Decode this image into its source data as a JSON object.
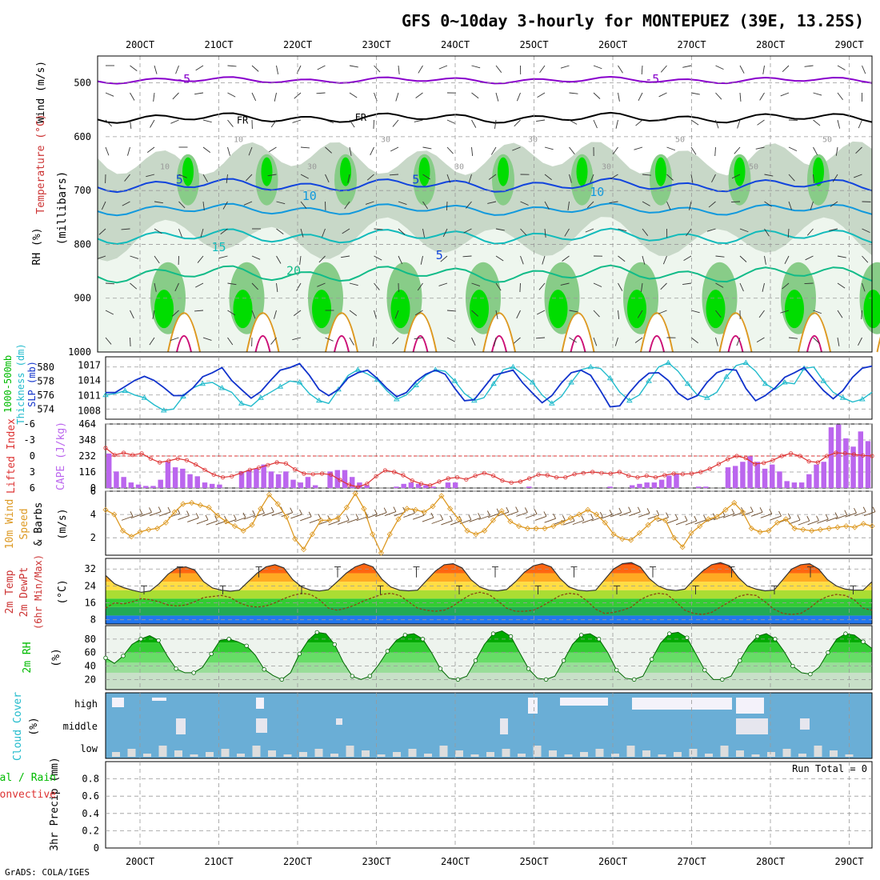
{
  "title": "GFS 0~10day 3-hourly for MONTEPUEZ (39E, 13.25S)",
  "footer": "GrADS: COLA/IGES",
  "run_total": "Run Total = 0",
  "days": [
    "20OCT",
    "21OCT",
    "22OCT",
    "23OCT",
    "24OCT",
    "25OCT",
    "26OCT",
    "27OCT",
    "28OCT",
    "29OCT"
  ],
  "colors": {
    "rh_dark": "#00dd00",
    "rh_mid": "#88cc88",
    "rh_light": "#c8d8c8",
    "rh_pale": "#eef6ee",
    "temp_neg5": "#8800cc",
    "temp_0": "#000000",
    "temp_5": "#1144dd",
    "temp_10": "#1199dd",
    "temp_15": "#11bbbb",
    "temp_20": "#11bb88",
    "temp_25": "#dd9922",
    "temp_30": "#cc1177",
    "slp": "#1133cc",
    "thickness": "#22bbcc",
    "cape": "#bb66ee",
    "lifted": "#dd3333",
    "wind10m": "#dd9922",
    "barb": "#6b4a2a",
    "rh2m": "#00bb00",
    "cloud_bg": "#6aaed6",
    "cloud_fill": "#dddddd"
  },
  "chart_data": [
    {
      "type": "heatmap",
      "name": "upper-air",
      "ylabel_parts": [
        "Wind (m/s)",
        "Temperature (°C)",
        "RH (%)",
        "(millibars)"
      ],
      "yticks": [
        500,
        600,
        700,
        800,
        900,
        1000
      ],
      "ylim": [
        1000,
        450
      ],
      "isotherm_labels": [
        {
          "label": "-5",
          "level": 493,
          "x_day": 0.55
        },
        {
          "label": "-5",
          "level": 493,
          "x_day": 6.5
        },
        {
          "label": "FR",
          "level": 568,
          "x_day": 1.3
        },
        {
          "label": "FR",
          "level": 563,
          "x_day": 2.8
        },
        {
          "label": "5",
          "level": 680,
          "x_day": 0.5
        },
        {
          "label": "5",
          "level": 680,
          "x_day": 3.5
        },
        {
          "label": "5",
          "level": 820,
          "x_day": 3.8
        },
        {
          "label": "10",
          "level": 710,
          "x_day": 2.15
        },
        {
          "label": "10",
          "level": 703,
          "x_day": 5.8
        },
        {
          "label": "15",
          "level": 805,
          "x_day": 1.0
        },
        {
          "label": "20",
          "level": 849,
          "x_day": 1.95
        }
      ],
      "rh_labels": [
        "10",
        "10",
        "30",
        "30",
        "30",
        "30",
        "30",
        "50",
        "50",
        "50"
      ]
    },
    {
      "type": "line",
      "name": "slp-thickness",
      "ylabel_left": [
        "1000-500mb",
        "Thickness (dm)"
      ],
      "ylabel_right": "SLP (mb)",
      "thickness_ticks": [
        574,
        576,
        578,
        580
      ],
      "slp_ticks": [
        1008,
        1011,
        1014,
        1017
      ],
      "series": [
        {
          "name": "SLP (mb)",
          "values": [
            1011.6,
            1011.6,
            1012.8,
            1014.0,
            1014.8,
            1014.0,
            1012.6,
            1011.0,
            1011.0,
            1012.5,
            1014.7,
            1015.5,
            1016.5,
            1014.0,
            1012.2,
            1010.5,
            1011.8,
            1014.0,
            1016.0,
            1016.5,
            1017.3,
            1015.0,
            1012.2,
            1011.0,
            1012.2,
            1014.5,
            1015.5,
            1016.0,
            1014.4,
            1012.4,
            1010.8,
            1011.6,
            1013.8,
            1015.2,
            1016.0,
            1015.2,
            1012.4,
            1010.0,
            1010.2,
            1012.6,
            1015.0,
            1015.5,
            1016.0,
            1013.5,
            1011.5,
            1009.6,
            1011.0,
            1013.5,
            1015.5,
            1016.0,
            1015.0,
            1012.0,
            1008.8,
            1009.0,
            1011.6,
            1013.8,
            1015.4,
            1015.5,
            1014.0,
            1011.5,
            1010.2,
            1011.0,
            1013.6,
            1015.5,
            1016.2,
            1016.0,
            1012.4,
            1010.0,
            1011.0,
            1012.5,
            1014.6,
            1015.5,
            1016.5,
            1014.2,
            1012.0,
            1010.4,
            1012.0,
            1014.6,
            1016.4,
            1016.8
          ]
        },
        {
          "name": "Thickness (dm)",
          "values": [
            576.0,
            576.2,
            576.6,
            576.0,
            575.6,
            574.6,
            573.8,
            574.0,
            575.8,
            577.0,
            577.6,
            577.8,
            577.0,
            576.4,
            574.8,
            574.4,
            575.6,
            576.4,
            577.2,
            578.0,
            577.8,
            576.2,
            575.2,
            574.8,
            576.8,
            578.8,
            579.6,
            579.0,
            578.2,
            576.6,
            575.4,
            576.0,
            577.4,
            578.8,
            579.6,
            579.4,
            578.0,
            576.2,
            575.2,
            575.6,
            577.6,
            579.6,
            580.0,
            579.0,
            577.8,
            576.0,
            574.8,
            575.8,
            577.8,
            579.6,
            580.0,
            579.8,
            578.4,
            576.4,
            575.2,
            576.0,
            578.0,
            580.0,
            580.6,
            579.4,
            577.6,
            576.0,
            575.6,
            576.4,
            578.6,
            580.2,
            580.6,
            579.4,
            577.6,
            576.8,
            577.8,
            577.6,
            579.8,
            580.0,
            578.0,
            576.4,
            575.6,
            575.0,
            575.4,
            576.4
          ]
        }
      ]
    },
    {
      "type": "bar",
      "name": "cape-li",
      "ylabel_left": "Lifted Index",
      "ylabel_right": "CAPE (J/kg)",
      "li_ticks": [
        6,
        3,
        0,
        -3,
        -6
      ],
      "cape_ticks": [
        0,
        116,
        232,
        348,
        464
      ],
      "series": [
        {
          "name": "CAPE (J/kg)",
          "values": [
            250,
            120,
            80,
            40,
            25,
            15,
            15,
            60,
            190,
            150,
            140,
            100,
            85,
            40,
            30,
            25,
            0,
            0,
            120,
            130,
            140,
            170,
            120,
            100,
            120,
            60,
            40,
            80,
            20,
            0,
            120,
            130,
            130,
            80,
            40,
            20,
            0,
            0,
            0,
            10,
            30,
            40,
            30,
            20,
            10,
            0,
            40,
            40,
            0,
            0,
            0,
            0,
            0,
            0,
            0,
            0,
            0,
            10,
            0,
            0,
            0,
            0,
            0,
            0,
            0,
            0,
            0,
            0,
            10,
            0,
            0,
            20,
            30,
            40,
            40,
            60,
            90,
            100,
            0,
            0,
            10,
            10,
            0,
            0,
            150,
            160,
            190,
            230,
            190,
            140,
            170,
            120,
            50,
            40,
            40,
            100,
            170,
            190,
            440,
            460,
            360,
            300,
            410,
            340
          ]
        },
        {
          "name": "Lifted Index",
          "values": [
            -1.5,
            -0.2,
            -0.6,
            -0.2,
            -0.5,
            0.5,
            1.2,
            0.9,
            0.5,
            0.8,
            1.6,
            2.6,
            3.5,
            4.0,
            3.8,
            3.2,
            2.6,
            2.2,
            1.7,
            1.2,
            1.4,
            2.5,
            3.3,
            3.4,
            3.3,
            3.5,
            4.5,
            5.4,
            5.8,
            5.2,
            3.8,
            2.7,
            3.0,
            3.6,
            4.6,
            5.2,
            5.5,
            4.8,
            4.2,
            4.0,
            4.4,
            3.7,
            3.2,
            3.7,
            4.6,
            5.0,
            4.8,
            4.2,
            3.5,
            3.6,
            4.0,
            4.0,
            3.4,
            3.2,
            3.0,
            3.2,
            3.3,
            3.0,
            3.7,
            4.0,
            3.7,
            4.0,
            3.6,
            3.3,
            3.4,
            3.3,
            3.0,
            2.4,
            1.5,
            0.6,
            0.0,
            0.4,
            1.5,
            1.3,
            0.8,
            0.0,
            -0.5,
            0.0,
            1.0,
            1.2,
            0.0,
            -0.6,
            -0.5,
            -0.3,
            -0.1,
            0.0
          ]
        }
      ]
    },
    {
      "type": "line",
      "name": "wind10m",
      "ylabel": [
        "10m Wind",
        "Speed",
        "& Barbs",
        "(m/s)"
      ],
      "yticks": [
        2,
        4,
        6
      ],
      "ylim": [
        0.5,
        6
      ],
      "series": [
        {
          "name": "10m Wind Speed (m/s)",
          "values": [
            4.4,
            4.0,
            2.6,
            2.1,
            2.5,
            2.7,
            2.8,
            3.3,
            4.2,
            4.9,
            5.0,
            4.8,
            4.6,
            3.9,
            3.4,
            3.0,
            2.6,
            3.1,
            4.5,
            5.7,
            4.9,
            3.8,
            1.9,
            1.0,
            2.3,
            3.5,
            3.5,
            3.7,
            4.6,
            5.8,
            4.5,
            2.3,
            0.7,
            2.3,
            3.6,
            4.5,
            4.4,
            4.2,
            4.7,
            5.6,
            4.5,
            3.6,
            2.6,
            2.3,
            2.6,
            3.5,
            4.3,
            3.4,
            3.0,
            2.8,
            2.8,
            2.8,
            3.0,
            3.3,
            3.7,
            4.0,
            4.4,
            4.0,
            3.3,
            2.3,
            1.9,
            1.8,
            2.4,
            3.1,
            3.7,
            3.5,
            2.0,
            1.2,
            2.4,
            3.0,
            3.6,
            3.8,
            4.4,
            5.0,
            4.2,
            2.8,
            2.5,
            2.6,
            3.3,
            3.6,
            2.8,
            2.7,
            2.6,
            2.7,
            2.8,
            2.9,
            3.0,
            2.9,
            3.2,
            3.0
          ]
        }
      ]
    },
    {
      "type": "area",
      "name": "temp2m",
      "ylabel": [
        "2m Temp",
        "2m DewPt",
        "(6hr Min/Max)",
        "(°C)"
      ],
      "yticks": [
        8,
        16,
        24,
        32
      ],
      "ylim": [
        6,
        37
      ],
      "series": [
        {
          "name": "2m Temp (°C)",
          "values": [
            29.0,
            25.0,
            23.2,
            22.0,
            21.0,
            21.6,
            25.0,
            29.5,
            32.5,
            33.0,
            31.5,
            26.0,
            23.0,
            22.0,
            21.5,
            22.0,
            26.0,
            30.0,
            33.0,
            34.0,
            32.5,
            27.0,
            23.5,
            22.0,
            21.6,
            22.2,
            26.0,
            30.0,
            33.0,
            34.5,
            33.0,
            27.2,
            23.5,
            22.0,
            21.7,
            22.0,
            26.5,
            31.0,
            34.0,
            34.5,
            32.5,
            27.0,
            23.5,
            22.0,
            21.7,
            22.3,
            26.0,
            30.5,
            33.5,
            34.5,
            33.0,
            27.5,
            23.5,
            22.0,
            21.6,
            22.0,
            27.0,
            32.0,
            34.5,
            35.0,
            33.0,
            27.5,
            24.0,
            22.3,
            21.8,
            22.5,
            27.0,
            31.0,
            34.0,
            35.0,
            33.5,
            28.0,
            24.0,
            22.5,
            21.7,
            22.0,
            27.0,
            32.0,
            34.0,
            34.5,
            32.0,
            27.0,
            24.0,
            22.5,
            22.0,
            22.0,
            26.0
          ]
        },
        {
          "name": "2m DewPt (°C)",
          "values": [
            13.5,
            16.0,
            15.5,
            16.5,
            18.0,
            17.5,
            16.5,
            15.0,
            14.5,
            15.0,
            16.5,
            18.5,
            19.0,
            19.5,
            18.5,
            16.0,
            14.5,
            14.0,
            14.5,
            16.0,
            18.0,
            19.5,
            20.5,
            20.0,
            17.5,
            13.5,
            12.5,
            13.5,
            15.0,
            17.0,
            18.5,
            20.0,
            20.5,
            19.5,
            16.5,
            13.5,
            12.5,
            12.0,
            12.5,
            14.5,
            17.5,
            20.0,
            21.0,
            20.0,
            17.0,
            13.5,
            12.0,
            12.0,
            12.5,
            14.5,
            17.0,
            19.5,
            20.5,
            20.0,
            17.0,
            13.0,
            11.0,
            11.5,
            12.5,
            14.0,
            17.5,
            19.5,
            20.5,
            20.0,
            16.5,
            12.5,
            11.0,
            10.5,
            11.5,
            14.0,
            16.5,
            19.0,
            20.0,
            19.5,
            16.5,
            13.0,
            11.0,
            10.5,
            11.0,
            13.5,
            17.0,
            19.0,
            20.0,
            19.5,
            17.5,
            13.5,
            12.5
          ]
        }
      ]
    },
    {
      "type": "area",
      "name": "rh2m",
      "ylabel": [
        "2m RH",
        "(%)"
      ],
      "yticks": [
        20,
        40,
        60,
        80
      ],
      "ylim": [
        5,
        100
      ],
      "series": [
        {
          "name": "2m RH (%)",
          "values": [
            52,
            44,
            55,
            72,
            80,
            85,
            78,
            55,
            36,
            30,
            30,
            38,
            58,
            78,
            80,
            76,
            70,
            56,
            35,
            26,
            20,
            30,
            58,
            78,
            90,
            88,
            72,
            45,
            25,
            20,
            25,
            42,
            62,
            78,
            86,
            88,
            80,
            60,
            36,
            22,
            20,
            25,
            48,
            72,
            88,
            92,
            84,
            60,
            36,
            22,
            20,
            25,
            48,
            72,
            86,
            88,
            80,
            60,
            34,
            22,
            20,
            25,
            50,
            74,
            88,
            90,
            82,
            58,
            34,
            20,
            20,
            25,
            48,
            70,
            84,
            88,
            80,
            62,
            40,
            30,
            28,
            38,
            60,
            80,
            88,
            86,
            76,
            66
          ]
        }
      ]
    },
    {
      "type": "heatmap",
      "name": "cloud-cover",
      "ylabel": [
        "Cloud Cover",
        "(%)"
      ],
      "levels": [
        "high",
        "middle",
        "low"
      ]
    },
    {
      "type": "bar",
      "name": "precip",
      "ylabel_left": [
        "Total / Rain",
        "Convective"
      ],
      "ylabel_inner": "3hr Precip (mm)",
      "yticks": [
        0,
        0.2,
        0.4,
        0.6,
        0.8
      ],
      "ylim": [
        0,
        1
      ],
      "series": [
        {
          "name": "3hr Precip (mm)",
          "values": []
        }
      ]
    }
  ]
}
